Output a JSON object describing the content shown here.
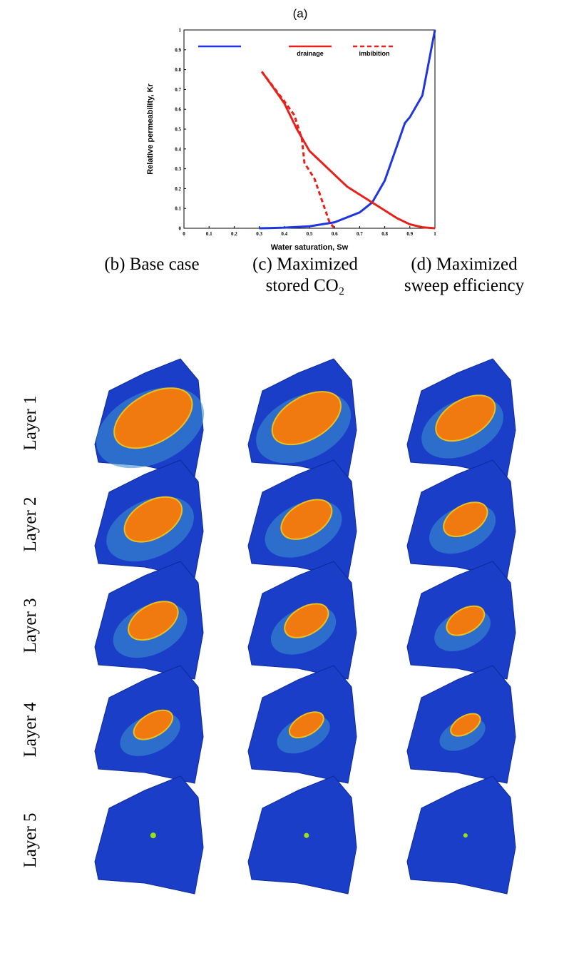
{
  "chart_data": {
    "type": "line",
    "title": "(a)",
    "xlabel": "Water saturation, Sw",
    "ylabel": "Relative permeability, Kr",
    "xlim": [
      0,
      1
    ],
    "ylim": [
      0,
      1
    ],
    "xticks": [
      0,
      0.1,
      0.2,
      0.3,
      0.4,
      0.5,
      0.6,
      0.7,
      0.8,
      0.9,
      1
    ],
    "yticks": [
      0,
      0.1,
      0.2,
      0.3,
      0.4,
      0.5,
      0.6,
      0.7,
      0.8,
      0.9,
      1
    ],
    "series": [
      {
        "color": "#1f35e0",
        "style": "solid",
        "x": [
          0.3,
          0.4,
          0.5,
          0.6,
          0.7,
          0.75,
          0.8,
          0.85,
          0.88,
          0.9,
          0.95,
          1
        ],
        "values": [
          0,
          0.003,
          0.01,
          0.03,
          0.08,
          0.13,
          0.24,
          0.42,
          0.53,
          0.56,
          0.67,
          1
        ]
      },
      {
        "name": "drainage",
        "color": "#e8201a",
        "style": "solid",
        "x": [
          0.31,
          0.35,
          0.4,
          0.45,
          0.5,
          0.55,
          0.6,
          0.65,
          0.7,
          0.75,
          0.8,
          0.85,
          0.9,
          0.95,
          1
        ],
        "values": [
          0.79,
          0.72,
          0.63,
          0.5,
          0.39,
          0.33,
          0.27,
          0.21,
          0.17,
          0.13,
          0.09,
          0.05,
          0.02,
          0.005,
          0
        ]
      },
      {
        "name": "imbibition",
        "color": "#e8201a",
        "style": "dashed",
        "x": [
          0.31,
          0.4,
          0.44,
          0.47,
          0.48,
          0.52,
          0.55,
          0.58,
          0.6
        ],
        "values": [
          0.79,
          0.64,
          0.57,
          0.45,
          0.33,
          0.25,
          0.14,
          0.03,
          0
        ]
      }
    ]
  },
  "grid": {
    "columns": [
      [
        "(b) Base case"
      ],
      [
        "(c) Maximized",
        "stored CO₂"
      ],
      [
        "(d) Maximized",
        "sweep efficiency"
      ]
    ],
    "rows": [
      "Layer 1",
      "Layer 2",
      "Layer 3",
      "Layer 4",
      "Layer 5"
    ]
  }
}
